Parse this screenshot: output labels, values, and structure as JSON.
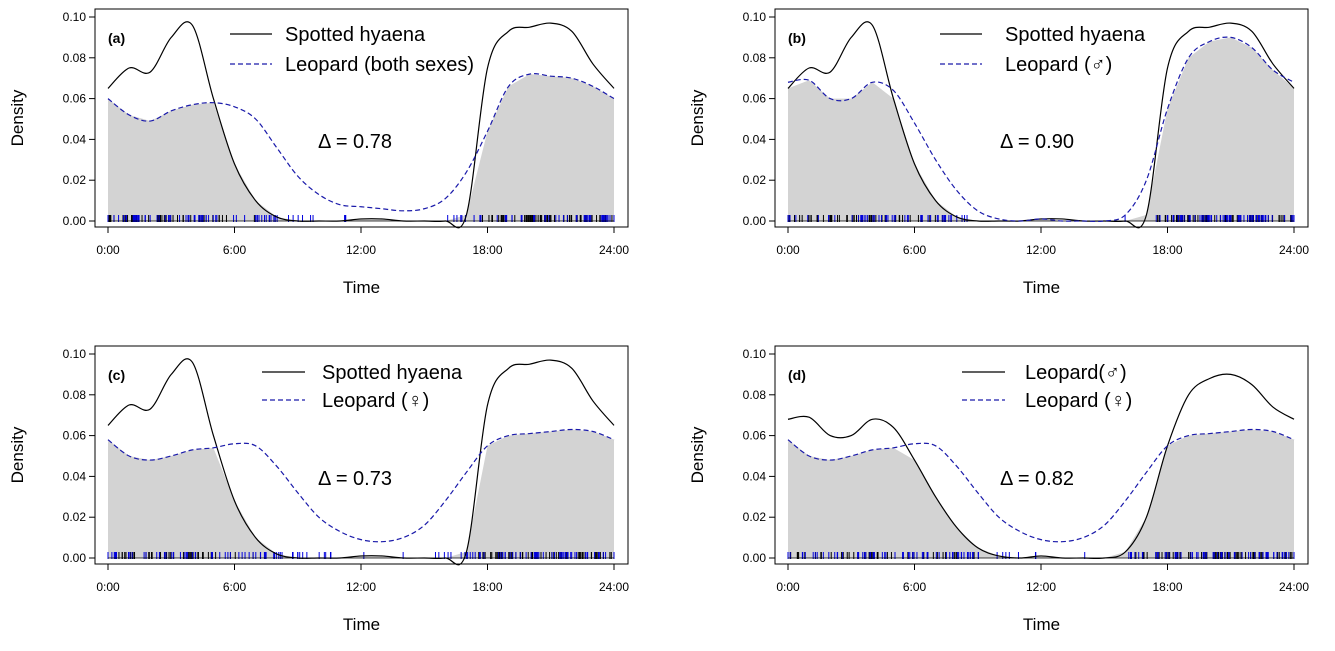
{
  "figure": {
    "layout": "2x2"
  },
  "chart_data": [
    {
      "type": "area",
      "panel_label": "(a)",
      "xlabel": "Time",
      "ylabel": "Density",
      "x_ticks": [
        "0:00",
        "6:00",
        "12:00",
        "18:00",
        "24:00"
      ],
      "y_ticks": [
        "0.00",
        "0.02",
        "0.04",
        "0.06",
        "0.08",
        "0.10"
      ],
      "xlim": [
        0,
        24
      ],
      "ylim": [
        0,
        0.1
      ],
      "overlap_label": "Δ = 0.78",
      "legend_position": "top-right",
      "x": [
        0,
        1,
        2,
        3,
        4,
        5,
        6,
        7,
        8,
        9,
        10,
        11,
        12,
        13,
        14,
        15,
        16,
        17,
        18,
        19,
        20,
        21,
        22,
        23,
        24
      ],
      "series": [
        {
          "name": "Spotted hyaena",
          "style": "solid",
          "color": "#000000",
          "values": [
            0.065,
            0.075,
            0.073,
            0.09,
            0.096,
            0.06,
            0.028,
            0.01,
            0.002,
            0.0,
            0.0,
            0.0,
            0.001,
            0.001,
            0.0,
            0.0,
            0.0,
            0.003,
            0.075,
            0.093,
            0.095,
            0.097,
            0.093,
            0.077,
            0.065
          ]
        },
        {
          "name": "Leopard (both sexes)",
          "style": "dashed",
          "color": "#1a1aaa",
          "values": [
            0.06,
            0.052,
            0.049,
            0.054,
            0.057,
            0.058,
            0.056,
            0.05,
            0.036,
            0.022,
            0.013,
            0.008,
            0.007,
            0.006,
            0.005,
            0.006,
            0.011,
            0.024,
            0.044,
            0.066,
            0.072,
            0.071,
            0.07,
            0.066,
            0.06
          ]
        }
      ],
      "rug": {
        "series1_color": "#000000",
        "series2_color": "#0000dd"
      }
    },
    {
      "type": "area",
      "panel_label": "(b)",
      "xlabel": "Time",
      "ylabel": "Density",
      "x_ticks": [
        "0:00",
        "6:00",
        "12:00",
        "18:00",
        "24:00"
      ],
      "y_ticks": [
        "0.00",
        "0.02",
        "0.04",
        "0.06",
        "0.08",
        "0.10"
      ],
      "xlim": [
        0,
        24
      ],
      "ylim": [
        0,
        0.1
      ],
      "overlap_label": "Δ = 0.90",
      "legend_position": "top-right",
      "x": [
        0,
        1,
        2,
        3,
        4,
        5,
        6,
        7,
        8,
        9,
        10,
        11,
        12,
        13,
        14,
        15,
        16,
        17,
        18,
        19,
        20,
        21,
        22,
        23,
        24
      ],
      "series": [
        {
          "name": "Spotted hyaena",
          "style": "solid",
          "color": "#000000",
          "values": [
            0.065,
            0.075,
            0.073,
            0.09,
            0.096,
            0.06,
            0.028,
            0.01,
            0.002,
            0.0,
            0.0,
            0.0,
            0.001,
            0.001,
            0.0,
            0.0,
            0.0,
            0.003,
            0.075,
            0.093,
            0.095,
            0.097,
            0.093,
            0.077,
            0.065
          ]
        },
        {
          "name": "Leopard (♂)",
          "style": "dashed",
          "color": "#1a1aaa",
          "values": [
            0.068,
            0.069,
            0.06,
            0.06,
            0.068,
            0.064,
            0.048,
            0.03,
            0.015,
            0.005,
            0.001,
            0.0,
            0.001,
            0.0,
            0.0,
            0.0,
            0.003,
            0.02,
            0.055,
            0.08,
            0.088,
            0.09,
            0.085,
            0.074,
            0.068
          ]
        }
      ],
      "rug": {
        "series1_color": "#000000",
        "series2_color": "#0000dd"
      }
    },
    {
      "type": "area",
      "panel_label": "(c)",
      "xlabel": "Time",
      "ylabel": "Density",
      "x_ticks": [
        "0:00",
        "6:00",
        "12:00",
        "18:00",
        "24:00"
      ],
      "y_ticks": [
        "0.00",
        "0.02",
        "0.04",
        "0.06",
        "0.08",
        "0.10"
      ],
      "xlim": [
        0,
        24
      ],
      "ylim": [
        0,
        0.1
      ],
      "overlap_label": "Δ = 0.73",
      "legend_position": "top-right",
      "x": [
        0,
        1,
        2,
        3,
        4,
        5,
        6,
        7,
        8,
        9,
        10,
        11,
        12,
        13,
        14,
        15,
        16,
        17,
        18,
        19,
        20,
        21,
        22,
        23,
        24
      ],
      "series": [
        {
          "name": "Spotted hyaena",
          "style": "solid",
          "color": "#000000",
          "values": [
            0.065,
            0.075,
            0.073,
            0.09,
            0.096,
            0.06,
            0.028,
            0.01,
            0.002,
            0.0,
            0.0,
            0.0,
            0.001,
            0.001,
            0.0,
            0.0,
            0.0,
            0.003,
            0.075,
            0.093,
            0.095,
            0.097,
            0.093,
            0.077,
            0.065
          ]
        },
        {
          "name": "Leopard (♀)",
          "style": "dashed",
          "color": "#1a1aaa",
          "values": [
            0.058,
            0.05,
            0.048,
            0.05,
            0.053,
            0.054,
            0.056,
            0.055,
            0.045,
            0.032,
            0.02,
            0.013,
            0.009,
            0.008,
            0.01,
            0.016,
            0.028,
            0.042,
            0.055,
            0.06,
            0.061,
            0.062,
            0.063,
            0.062,
            0.058
          ]
        }
      ],
      "rug": {
        "series1_color": "#000000",
        "series2_color": "#0000dd"
      }
    },
    {
      "type": "area",
      "panel_label": "(d)",
      "xlabel": "Time",
      "ylabel": "Density",
      "x_ticks": [
        "0:00",
        "6:00",
        "12:00",
        "18:00",
        "24:00"
      ],
      "y_ticks": [
        "0.00",
        "0.02",
        "0.04",
        "0.06",
        "0.08",
        "0.10"
      ],
      "xlim": [
        0,
        24
      ],
      "ylim": [
        0,
        0.1
      ],
      "overlap_label": "Δ = 0.82",
      "legend_position": "top-right",
      "x": [
        0,
        1,
        2,
        3,
        4,
        5,
        6,
        7,
        8,
        9,
        10,
        11,
        12,
        13,
        14,
        15,
        16,
        17,
        18,
        19,
        20,
        21,
        22,
        23,
        24
      ],
      "series": [
        {
          "name": "Leopard(♂)",
          "style": "solid",
          "color": "#000000",
          "values": [
            0.068,
            0.069,
            0.06,
            0.06,
            0.068,
            0.064,
            0.048,
            0.03,
            0.015,
            0.005,
            0.001,
            0.0,
            0.001,
            0.0,
            0.0,
            0.0,
            0.003,
            0.02,
            0.055,
            0.08,
            0.088,
            0.09,
            0.085,
            0.074,
            0.068
          ]
        },
        {
          "name": "Leopard (♀)",
          "style": "dashed",
          "color": "#1a1aaa",
          "values": [
            0.058,
            0.05,
            0.048,
            0.05,
            0.053,
            0.054,
            0.056,
            0.055,
            0.045,
            0.032,
            0.02,
            0.013,
            0.009,
            0.008,
            0.01,
            0.016,
            0.028,
            0.042,
            0.055,
            0.06,
            0.061,
            0.062,
            0.063,
            0.062,
            0.058
          ]
        }
      ],
      "rug": {
        "series1_color": "#000000",
        "series2_color": "#0000dd"
      }
    }
  ]
}
